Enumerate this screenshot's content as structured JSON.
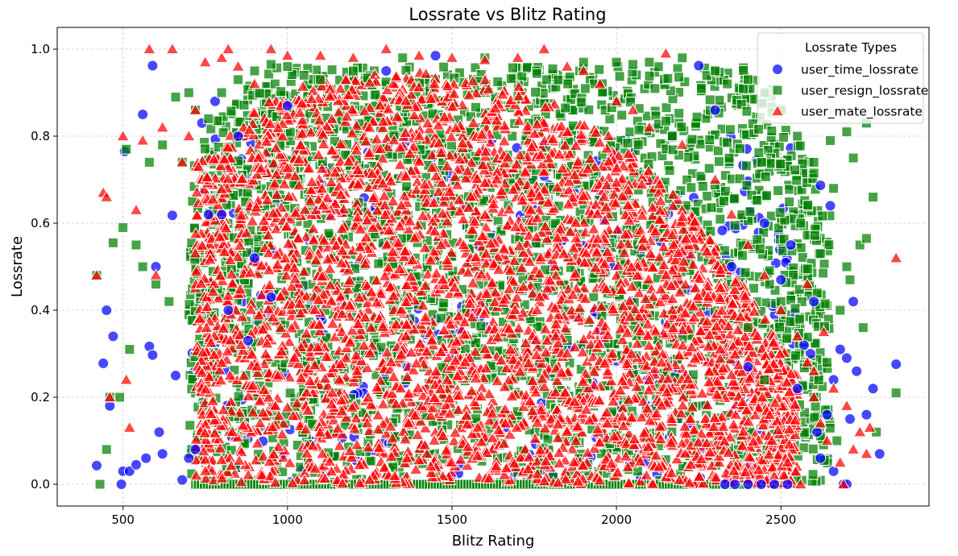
{
  "chart_data": {
    "type": "scatter",
    "title": "Lossrate vs Blitz Rating",
    "xlabel": "Blitz Rating",
    "ylabel": "Lossrate",
    "xlim": [
      300,
      2950
    ],
    "ylim": [
      -0.05,
      1.05
    ],
    "xticks": [
      500,
      1000,
      1500,
      2000,
      2500
    ],
    "yticks": [
      0.0,
      0.2,
      0.4,
      0.6,
      0.8,
      1.0
    ],
    "xtick_labels": [
      "500",
      "1000",
      "1500",
      "2000",
      "2500"
    ],
    "ytick_labels": [
      "0.0",
      "0.2",
      "0.4",
      "0.6",
      "0.8",
      "1.0"
    ],
    "grid": true,
    "legend": {
      "title": "Lossrate Types",
      "position": "top-right"
    },
    "series": [
      {
        "name": "user_time_lossrate",
        "marker": "circle",
        "color": "#0000ff",
        "points": [
          [
            420,
            0.043
          ],
          [
            440,
            0.278
          ],
          [
            450,
            0.4
          ],
          [
            460,
            0.18
          ],
          [
            470,
            0.34
          ],
          [
            495,
            0.0
          ],
          [
            500,
            0.03
          ],
          [
            505,
            0.765
          ],
          [
            520,
            0.03
          ],
          [
            540,
            0.045
          ],
          [
            560,
            0.85
          ],
          [
            570,
            0.06
          ],
          [
            580,
            0.317
          ],
          [
            590,
            0.962
          ],
          [
            590,
            0.297
          ],
          [
            600,
            0.5
          ],
          [
            610,
            0.12
          ],
          [
            620,
            0.07
          ],
          [
            650,
            0.618
          ],
          [
            660,
            0.25
          ],
          [
            680,
            0.01
          ],
          [
            700,
            0.06
          ],
          [
            720,
            0.08
          ],
          [
            740,
            0.83
          ],
          [
            760,
            0.62
          ],
          [
            780,
            0.88
          ],
          [
            800,
            0.62
          ],
          [
            820,
            0.4
          ],
          [
            850,
            0.8
          ],
          [
            880,
            0.33
          ],
          [
            900,
            0.52
          ],
          [
            950,
            0.43
          ],
          [
            1000,
            0.87
          ],
          [
            1300,
            0.95
          ],
          [
            1450,
            0.985
          ],
          [
            2250,
            0.962
          ],
          [
            2300,
            0.86
          ],
          [
            2350,
            0.5
          ],
          [
            2400,
            0.27
          ],
          [
            2450,
            0.6
          ],
          [
            2500,
            0.47
          ],
          [
            2520,
            0.0
          ],
          [
            2530,
            0.55
          ],
          [
            2550,
            0.22
          ],
          [
            2570,
            0.32
          ],
          [
            2600,
            0.42
          ],
          [
            2620,
            0.06
          ],
          [
            2640,
            0.16
          ],
          [
            2650,
            0.64
          ],
          [
            2660,
            0.03
          ],
          [
            2680,
            0.31
          ],
          [
            2690,
            0.0
          ],
          [
            2700,
            0.29
          ],
          [
            2710,
            0.15
          ],
          [
            2720,
            0.42
          ],
          [
            2730,
            0.26
          ],
          [
            2760,
            0.16
          ],
          [
            2780,
            0.22
          ],
          [
            2800,
            0.07
          ],
          [
            2850,
            0.276
          ],
          [
            2620,
            0.687
          ],
          [
            2330,
            0.0
          ],
          [
            2360,
            0.0
          ],
          [
            2400,
            0.0
          ],
          [
            2440,
            0.0
          ],
          [
            2480,
            0.0
          ],
          [
            2590,
            0.3
          ],
          [
            2610,
            0.12
          ],
          [
            2660,
            0.24
          ],
          [
            2700,
            0.0
          ]
        ]
      },
      {
        "name": "user_resign_lossrate",
        "marker": "square",
        "color": "#008000",
        "points": [
          [
            420,
            0.48
          ],
          [
            430,
            0.0
          ],
          [
            450,
            0.08
          ],
          [
            460,
            0.2
          ],
          [
            470,
            0.555
          ],
          [
            490,
            0.2
          ],
          [
            500,
            0.59
          ],
          [
            510,
            0.77
          ],
          [
            520,
            0.31
          ],
          [
            540,
            0.55
          ],
          [
            560,
            0.5
          ],
          [
            580,
            0.74
          ],
          [
            600,
            0.46
          ],
          [
            620,
            0.78
          ],
          [
            640,
            0.42
          ],
          [
            660,
            0.89
          ],
          [
            680,
            0.74
          ],
          [
            700,
            0.9
          ],
          [
            720,
            0.86
          ],
          [
            760,
            0.84
          ],
          [
            800,
            0.9
          ],
          [
            850,
            0.93
          ],
          [
            900,
            0.95
          ],
          [
            950,
            0.965
          ],
          [
            1000,
            0.96
          ],
          [
            1050,
            0.94
          ],
          [
            1100,
            0.93
          ],
          [
            1200,
            0.95
          ],
          [
            1350,
            0.98
          ],
          [
            1600,
            0.98
          ],
          [
            1900,
            0.97
          ],
          [
            2000,
            0.97
          ],
          [
            2050,
            0.965
          ],
          [
            2100,
            0.97
          ],
          [
            2200,
            0.98
          ],
          [
            2300,
            0.95
          ],
          [
            2400,
            0.93
          ],
          [
            2450,
            0.9
          ],
          [
            2500,
            0.86
          ],
          [
            2550,
            0.8
          ],
          [
            2600,
            0.74
          ],
          [
            2620,
            0.53
          ],
          [
            2650,
            0.79
          ],
          [
            2660,
            0.68
          ],
          [
            2700,
            0.5
          ],
          [
            2710,
            0.47
          ],
          [
            2720,
            0.75
          ],
          [
            2740,
            0.55
          ],
          [
            2750,
            0.36
          ],
          [
            2760,
            0.83
          ],
          [
            2780,
            0.66
          ],
          [
            2790,
            0.12
          ],
          [
            2850,
            0.21
          ],
          [
            2700,
            0.81
          ],
          [
            2680,
            0.4
          ],
          [
            2760,
            0.565
          ],
          [
            2560,
            0.6
          ],
          [
            2600,
            0.2
          ],
          [
            2640,
            0.28
          ],
          [
            2670,
            0.1
          ],
          [
            2500,
            0.42
          ],
          [
            2450,
            0.24
          ],
          [
            2400,
            0.36
          ]
        ]
      },
      {
        "name": "user_mate_lossrate",
        "marker": "triangle",
        "color": "#ff0000",
        "points": [
          [
            420,
            0.48
          ],
          [
            440,
            0.67
          ],
          [
            450,
            0.66
          ],
          [
            460,
            0.2
          ],
          [
            500,
            0.8
          ],
          [
            510,
            0.24
          ],
          [
            520,
            0.13
          ],
          [
            540,
            0.63
          ],
          [
            560,
            0.79
          ],
          [
            580,
            1.0
          ],
          [
            600,
            0.48
          ],
          [
            620,
            0.82
          ],
          [
            650,
            1.0
          ],
          [
            680,
            0.74
          ],
          [
            700,
            0.8
          ],
          [
            720,
            0.86
          ],
          [
            750,
            0.97
          ],
          [
            800,
            0.98
          ],
          [
            820,
            1.0
          ],
          [
            850,
            0.96
          ],
          [
            900,
            0.92
          ],
          [
            950,
            1.0
          ],
          [
            1000,
            0.985
          ],
          [
            1100,
            0.985
          ],
          [
            1200,
            0.98
          ],
          [
            1300,
            1.0
          ],
          [
            1400,
            0.985
          ],
          [
            1500,
            0.98
          ],
          [
            1600,
            0.975
          ],
          [
            1700,
            0.98
          ],
          [
            1780,
            1.0
          ],
          [
            1850,
            0.96
          ],
          [
            1900,
            0.95
          ],
          [
            1950,
            0.92
          ],
          [
            2000,
            0.88
          ],
          [
            2050,
            0.86
          ],
          [
            2100,
            0.82
          ],
          [
            2150,
            0.99
          ],
          [
            2200,
            0.78
          ],
          [
            2300,
            0.7
          ],
          [
            2350,
            0.62
          ],
          [
            2400,
            0.55
          ],
          [
            2450,
            0.48
          ],
          [
            2500,
            0.4
          ],
          [
            2550,
            0.34
          ],
          [
            2580,
            0.28
          ],
          [
            2600,
            0.2
          ],
          [
            2620,
            0.14
          ],
          [
            2640,
            0.1
          ],
          [
            2660,
            0.22
          ],
          [
            2680,
            0.05
          ],
          [
            2700,
            0.18
          ],
          [
            2720,
            0.08
          ],
          [
            2740,
            0.12
          ],
          [
            2760,
            0.07
          ],
          [
            2770,
            0.13
          ],
          [
            2850,
            0.52
          ],
          [
            2690,
            0.0
          ],
          [
            2560,
            0.0
          ],
          [
            2520,
            0.05
          ],
          [
            2600,
            0.26
          ],
          [
            2630,
            0.35
          ],
          [
            2580,
            0.46
          ]
        ]
      }
    ],
    "dense_region": {
      "note_series": [
        "user_resign_lossrate",
        "user_mate_lossrate",
        "user_time_lossrate"
      ],
      "green_x_range": [
        700,
        2650
      ],
      "red_x_range": [
        720,
        2550
      ],
      "red_y_top_at_x": [
        [
          750,
          0.75
        ],
        [
          900,
          0.87
        ],
        [
          1100,
          0.93
        ],
        [
          1400,
          0.95
        ],
        [
          1700,
          0.92
        ],
        [
          2000,
          0.8
        ],
        [
          2200,
          0.65
        ],
        [
          2400,
          0.45
        ],
        [
          2550,
          0.25
        ]
      ]
    }
  }
}
